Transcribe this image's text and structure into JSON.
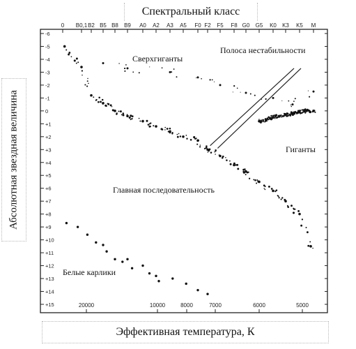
{
  "chart_data": {
    "type": "scatter",
    "title": "",
    "top_axis_label": "Спектральный класс",
    "xlabel": "Эффективная температура, К",
    "ylabel": "Абсолютная звездная величина",
    "spectral_classes": [
      "0",
      "B0,1",
      "B2",
      "B5",
      "B8",
      "B9",
      "A0",
      "A2",
      "A3",
      "A5",
      "F0",
      "F2",
      "F5",
      "F8",
      "G0",
      "G5",
      "K0",
      "K3",
      "K5",
      "M"
    ],
    "temperature_ticks": [
      {
        "label": "20000",
        "value": 20000
      },
      {
        "label": "10000",
        "value": 10000
      },
      {
        "label": "8000",
        "value": 8000
      },
      {
        "label": "7000",
        "value": 7000
      },
      {
        "label": "6000",
        "value": 6000
      },
      {
        "label": "5000",
        "value": 5000
      }
    ],
    "y_ticks": [
      "-6",
      "-5",
      "-4",
      "-3",
      "-2",
      "-1",
      "0",
      "+1",
      "+2",
      "+3",
      "+4",
      "+5",
      "+6",
      "+7",
      "+8",
      "+9",
      "+10",
      "+11",
      "+12",
      "+13",
      "+14",
      "+15"
    ],
    "ylim": [
      -6,
      15
    ],
    "y_inverted": true,
    "regions": {
      "supergiants": "Сверхгиганты",
      "instability_strip": "Полоса нестабильности",
      "giants": "Гиганты",
      "main_sequence": "Главная последовательность",
      "white_dwarfs": "Белые карлики"
    },
    "series": [
      {
        "x_class": [
          0.1,
          1.0,
          2.0,
          3.0,
          4.0,
          5.0,
          6.0,
          7.0,
          8.0,
          9.0,
          10.0,
          11.0,
          12.0,
          13.0,
          14.0,
          15.0,
          16.0,
          17.0,
          18.0,
          18.8
        ],
        "y": [
          -5,
          -3.4,
          -1.2,
          -0.6,
          0.0,
          0.4,
          0.8,
          1.2,
          1.6,
          2.0,
          2.3,
          3.0,
          3.5,
          4.2,
          4.7,
          5.5,
          6.2,
          7.0,
          8.0,
          10.5
        ]
      },
      {
        "x_class": [
          15.0,
          15.5,
          16.0,
          16.5,
          17.0,
          17.5,
          18.0,
          18.5,
          19.0
        ],
        "y": [
          0.8,
          0.7,
          0.5,
          0.4,
          0.3,
          0.2,
          0.1,
          0.0,
          0.0
        ]
      },
      {
        "x_class": [
          3.0,
          5.0,
          8.0,
          10.0,
          12.0,
          14.0,
          16.0,
          17.5,
          19.0
        ],
        "y": [
          -3.7,
          -3.3,
          -3.0,
          -2.6,
          -2.0,
          -1.4,
          -1.0,
          -0.5,
          -1.5
        ]
      },
      {
        "x_class": [
          0.2,
          0.8,
          1.6,
          2.4,
          3.0,
          3.3,
          4.0,
          4.6,
          5.0,
          5.3,
          6.0,
          6.5,
          7.0,
          7.2,
          8.2,
          9.2,
          10.0,
          11.0
        ],
        "y": [
          8.7,
          9.0,
          9.6,
          10.2,
          10.4,
          10.9,
          11.5,
          11.7,
          11.5,
          12.2,
          12.0,
          12.6,
          12.8,
          13.2,
          13.0,
          13.4,
          13.9,
          14.2
        ]
      }
    ]
  }
}
